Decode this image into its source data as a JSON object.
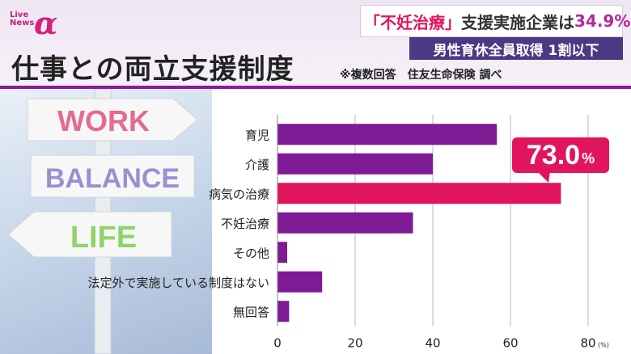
{
  "logo": {
    "live_text": "Live\nNews",
    "alpha": "α"
  },
  "headline": {
    "part1": "「不妊治療」",
    "part2": "支援実施企業は",
    "value": "34.9%"
  },
  "subheadline": "男性育休全員取得 1割以下",
  "title": "仕事との両立支援制度",
  "note": "※複数回答　住友生命保険 調べ",
  "illustration": {
    "sign1": "WORK",
    "sign2": "BALANCE",
    "sign3": "LIFE"
  },
  "callout": {
    "value": "73.0",
    "unit": "%"
  },
  "colors": {
    "bar": "#7d1a94",
    "highlight": "#e0155e",
    "rule": "#8a1a9a"
  },
  "chart_data": {
    "type": "bar",
    "orientation": "horizontal",
    "categories": [
      "育児",
      "介護",
      "病気の治療",
      "不妊治療",
      "その他",
      "法定外で実施している制度はない",
      "無回答"
    ],
    "values": [
      56.5,
      40.0,
      73.0,
      34.9,
      2.5,
      11.5,
      3.0
    ],
    "highlight_index": 2,
    "xlim": [
      0,
      80
    ],
    "xticks": [
      "0",
      "20",
      "40",
      "60",
      "80"
    ],
    "xunit": "(%)",
    "grid": true
  }
}
